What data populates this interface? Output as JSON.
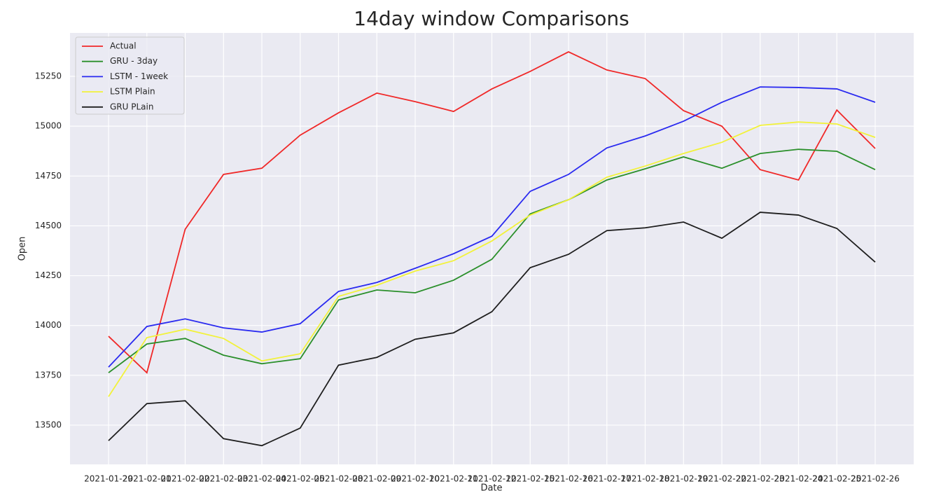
{
  "chart_data": {
    "type": "line",
    "title": "14day window Comparisons",
    "x_label": "Date",
    "y_label": "Open",
    "categories": [
      "2021-01-29",
      "2021-02-01",
      "2021-02-02",
      "2021-02-03",
      "2021-02-04",
      "2021-02-05",
      "2021-02-08",
      "2021-02-09",
      "2021-02-10",
      "2021-02-11",
      "2021-02-12",
      "2021-02-15",
      "2021-02-16",
      "2021-02-17",
      "2021-02-18",
      "2021-02-19",
      "2021-02-22",
      "2021-02-23",
      "2021-02-24",
      "2021-02-25",
      "2021-02-26"
    ],
    "series": [
      {
        "name": "Actual",
        "color": "#f02828",
        "values": [
          13946,
          13763,
          14483,
          14758,
          14789,
          14955,
          15067,
          15166,
          15123,
          15074,
          15187,
          15275,
          15373,
          15282,
          15239,
          15078,
          15000,
          14782,
          14730,
          15081,
          14888
        ]
      },
      {
        "name": "GRU - 3day",
        "color": "#2a8f2a",
        "values": [
          13763,
          13907,
          13935,
          13851,
          13808,
          13833,
          14128,
          14178,
          14164,
          14227,
          14332,
          14560,
          14631,
          14730,
          14786,
          14846,
          14789,
          14863,
          14884,
          14874,
          14782
        ]
      },
      {
        "name": "LSTM - 1week",
        "color": "#2a2af0",
        "values": [
          13791,
          13995,
          14033,
          13988,
          13967,
          14009,
          14171,
          14216,
          14287,
          14360,
          14448,
          14673,
          14758,
          14891,
          14951,
          15025,
          15120,
          15197,
          15194,
          15187,
          15120
        ]
      },
      {
        "name": "LSTM Plain",
        "color": "#f2f23a",
        "values": [
          13643,
          13939,
          13981,
          13935,
          13822,
          13858,
          14146,
          14202,
          14273,
          14325,
          14424,
          14554,
          14631,
          14744,
          14800,
          14863,
          14919,
          15004,
          15021,
          15011,
          14944
        ]
      },
      {
        "name": "GRU PLain",
        "color": "#1e1e1e",
        "values": [
          13422,
          13608,
          13622,
          13432,
          13397,
          13485,
          13801,
          13840,
          13931,
          13963,
          14069,
          14290,
          14357,
          14476,
          14490,
          14519,
          14438,
          14568,
          14554,
          14487,
          14318
        ]
      }
    ],
    "ylim": [
      13303,
      15468
    ],
    "yticks": [
      13500,
      13750,
      14000,
      14250,
      14500,
      14750,
      15000,
      15250
    ],
    "grid": true,
    "legend": "upper left"
  }
}
